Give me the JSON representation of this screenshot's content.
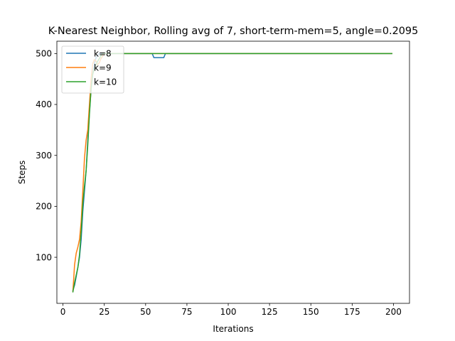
{
  "chart_data": {
    "type": "line",
    "title": "K-Nearest Neighbor, Rolling avg of 7, short-term-mem=5, angle=0.2095",
    "xlabel": "Iterations",
    "ylabel": "Steps",
    "xlim": [
      -3.7,
      209.7
    ],
    "ylim": [
      9.5,
      524.2
    ],
    "xticks": [
      0,
      25,
      50,
      75,
      100,
      125,
      150,
      175,
      200
    ],
    "yticks": [
      100,
      200,
      300,
      400,
      500
    ],
    "grid": false,
    "legend_position": "top-left",
    "series": [
      {
        "name": "k=8",
        "color": "#1f77b4",
        "points": [
          [
            6,
            35
          ],
          [
            7,
            45
          ],
          [
            8,
            62
          ],
          [
            9,
            80
          ],
          [
            10,
            100
          ],
          [
            11,
            135
          ],
          [
            12,
            190
          ],
          [
            13,
            230
          ],
          [
            14,
            270
          ],
          [
            15,
            330
          ],
          [
            16,
            385
          ],
          [
            17,
            430
          ],
          [
            18,
            460
          ],
          [
            19,
            480
          ],
          [
            20,
            492
          ],
          [
            21,
            497
          ],
          [
            22,
            500
          ],
          [
            24,
            500
          ],
          [
            54,
            500
          ],
          [
            55,
            492
          ],
          [
            56,
            492
          ],
          [
            60,
            492
          ],
          [
            61,
            492
          ],
          [
            62,
            500
          ],
          [
            199,
            500
          ]
        ]
      },
      {
        "name": "k=9",
        "color": "#ff7f0e",
        "points": [
          [
            6,
            33
          ],
          [
            7,
            85
          ],
          [
            8,
            108
          ],
          [
            9,
            120
          ],
          [
            10,
            135
          ],
          [
            11,
            170
          ],
          [
            12,
            230
          ],
          [
            13,
            295
          ],
          [
            14,
            330
          ],
          [
            15,
            350
          ],
          [
            16,
            400
          ],
          [
            17,
            450
          ],
          [
            18,
            480
          ],
          [
            19,
            488
          ],
          [
            20,
            485
          ],
          [
            21,
            478
          ],
          [
            22,
            482
          ],
          [
            23,
            490
          ],
          [
            24,
            495
          ],
          [
            25,
            500
          ],
          [
            199,
            500
          ]
        ]
      },
      {
        "name": "k=10",
        "color": "#2ca02c",
        "points": [
          [
            6,
            32
          ],
          [
            7,
            50
          ],
          [
            8,
            65
          ],
          [
            9,
            80
          ],
          [
            10,
            105
          ],
          [
            11,
            150
          ],
          [
            12,
            205
          ],
          [
            13,
            240
          ],
          [
            14,
            270
          ],
          [
            15,
            320
          ],
          [
            16,
            380
          ],
          [
            17,
            430
          ],
          [
            18,
            460
          ],
          [
            19,
            470
          ],
          [
            20,
            478
          ],
          [
            21,
            485
          ],
          [
            22,
            490
          ],
          [
            23,
            496
          ],
          [
            24,
            500
          ],
          [
            199,
            500
          ]
        ]
      }
    ]
  }
}
